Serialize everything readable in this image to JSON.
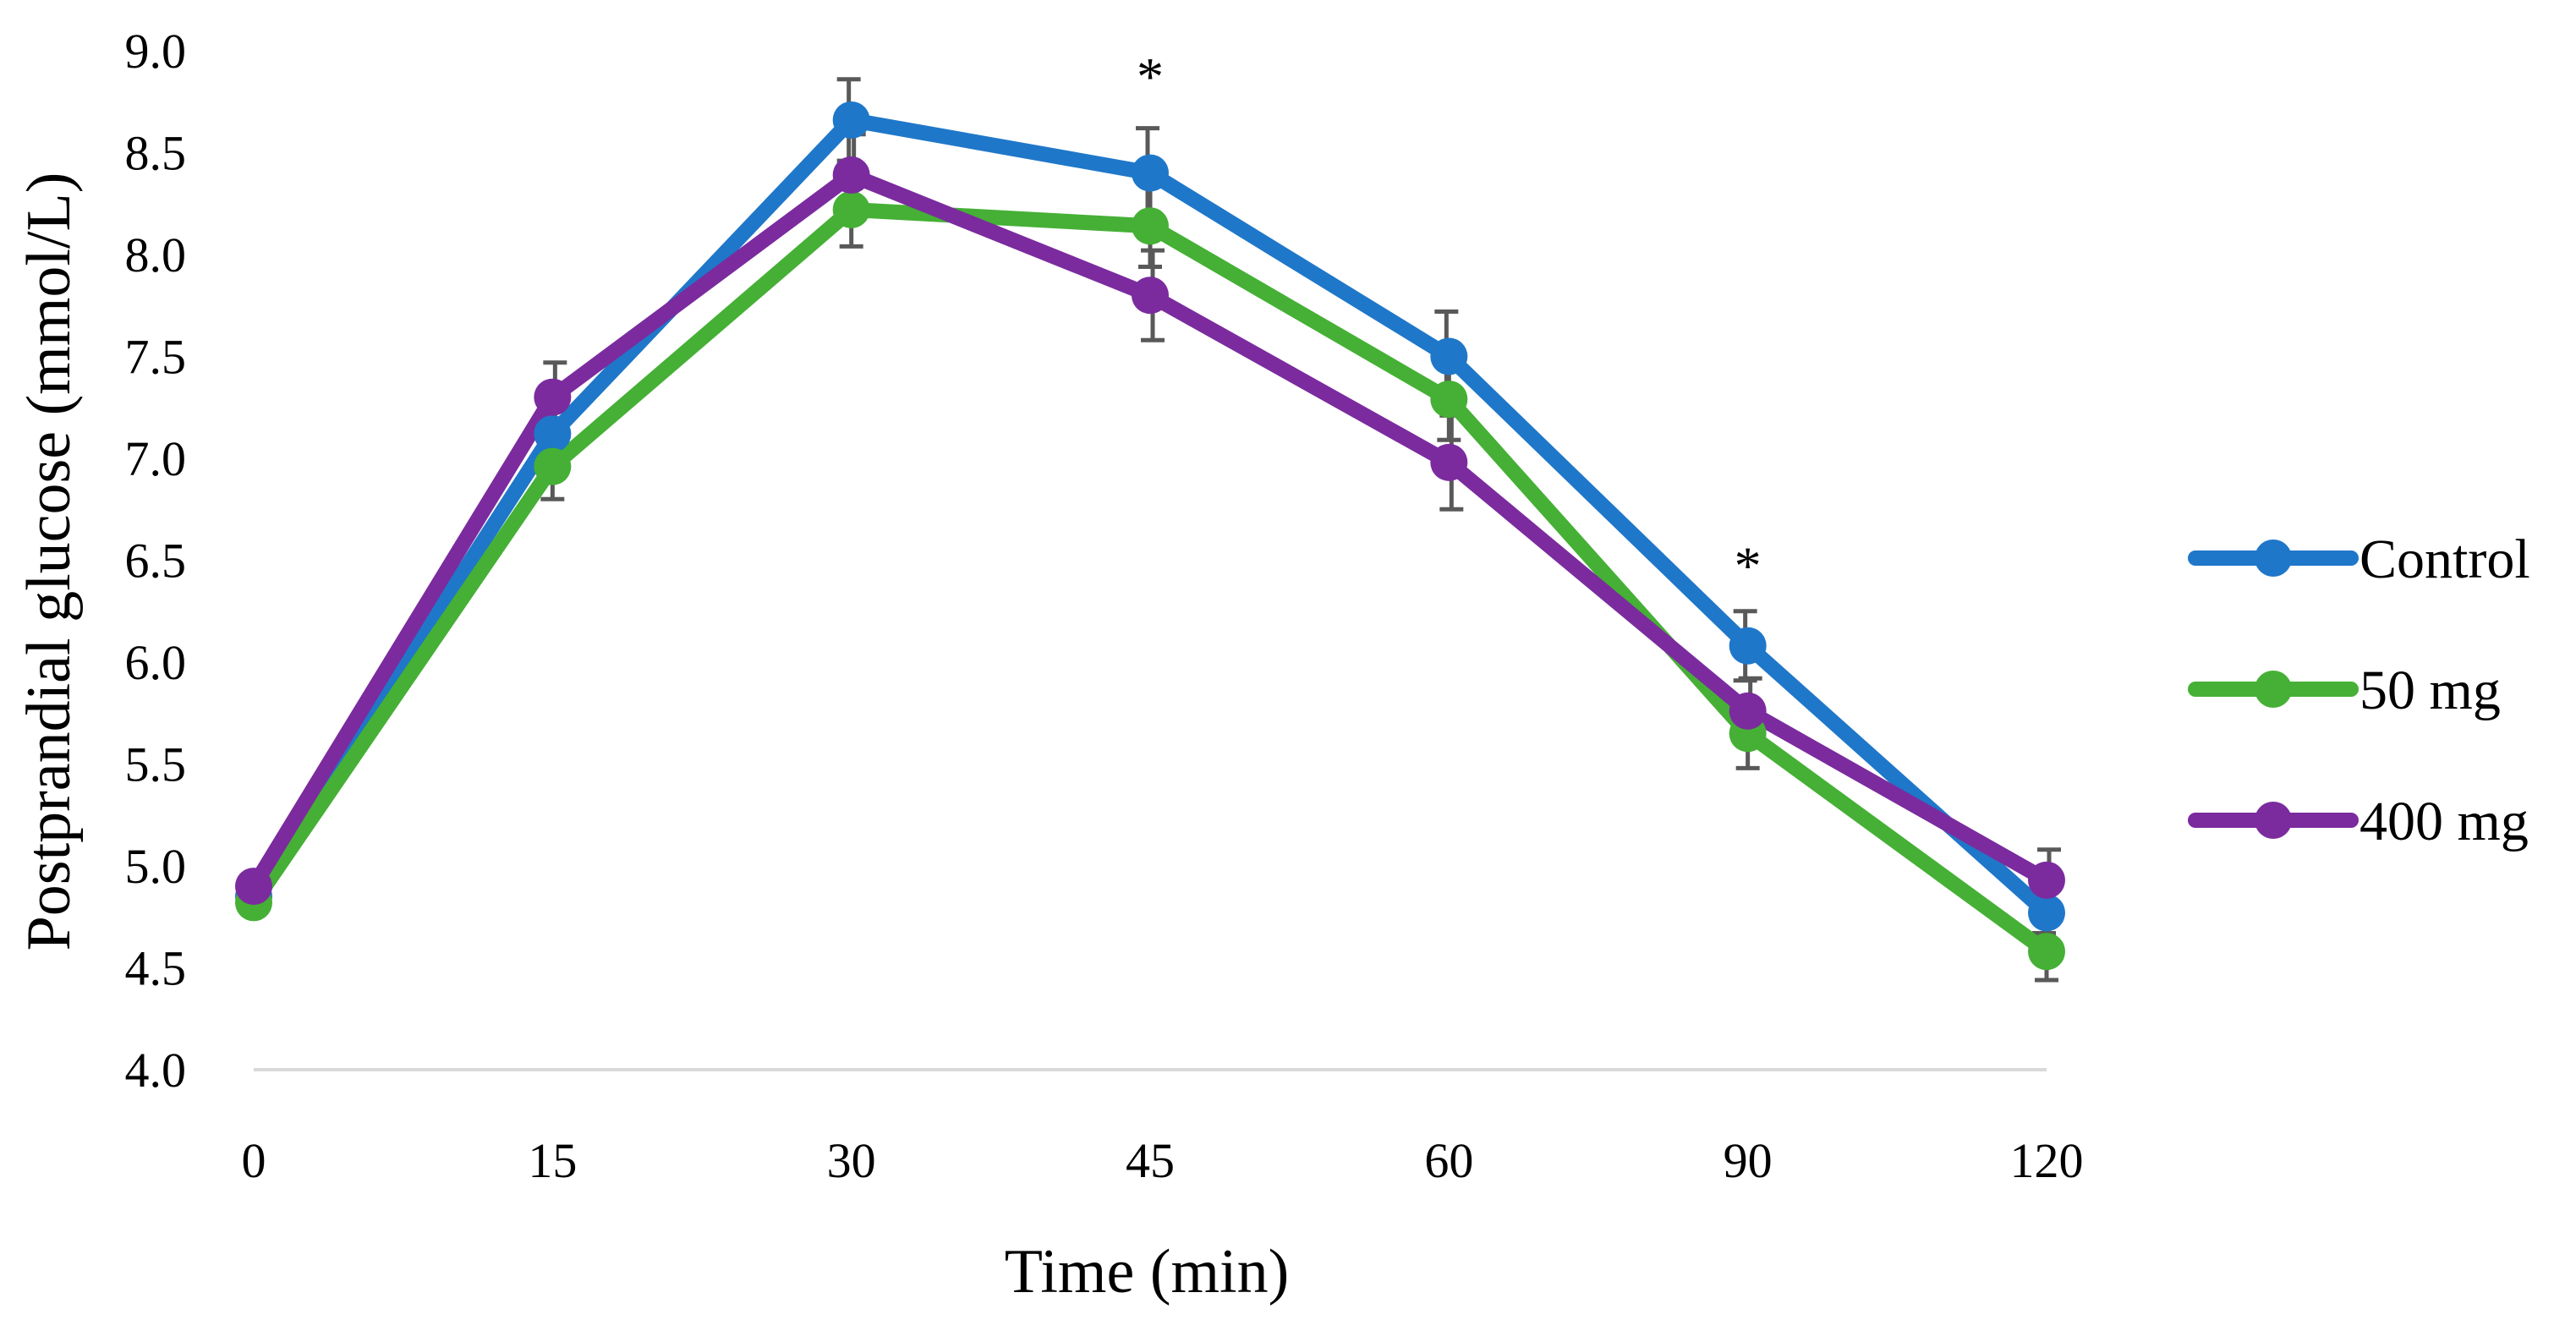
{
  "chart_data": {
    "type": "line",
    "title": "",
    "xlabel": "Time (min)",
    "ylabel": "Postprandial glucose (mmol/L)",
    "categories": [
      "0",
      "15",
      "30",
      "45",
      "60",
      "90",
      "120"
    ],
    "ylim": [
      4.0,
      9.0
    ],
    "yticks": [
      "4.0",
      "4.5",
      "5.0",
      "5.5",
      "6.0",
      "6.5",
      "7.0",
      "7.5",
      "8.0",
      "8.5",
      "9.0"
    ],
    "grid": false,
    "legend_position": "right",
    "annotations": [
      {
        "text": "*",
        "category": "45",
        "y": 8.95
      },
      {
        "text": "*",
        "category": "90",
        "y": 6.55
      }
    ],
    "series": [
      {
        "name": "Control",
        "color": "#1f77c9",
        "values": [
          4.85,
          7.12,
          8.66,
          8.4,
          7.5,
          6.08,
          4.77
        ],
        "errors": [
          0.05,
          0.15,
          0.2,
          0.22,
          0.22,
          0.17,
          0.1
        ]
      },
      {
        "name": "50 mg",
        "color": "#45b035",
        "values": [
          4.82,
          6.96,
          8.22,
          8.14,
          7.29,
          5.65,
          4.58
        ],
        "errors": [
          0.05,
          0.16,
          0.18,
          0.2,
          0.2,
          0.17,
          0.14
        ]
      },
      {
        "name": "400 mg",
        "color": "#7b2b9e",
        "values": [
          4.9,
          7.3,
          8.39,
          7.8,
          6.98,
          5.76,
          4.93
        ],
        "errors": [
          0.05,
          0.17,
          0.2,
          0.22,
          0.23,
          0.16,
          0.15
        ]
      }
    ]
  }
}
